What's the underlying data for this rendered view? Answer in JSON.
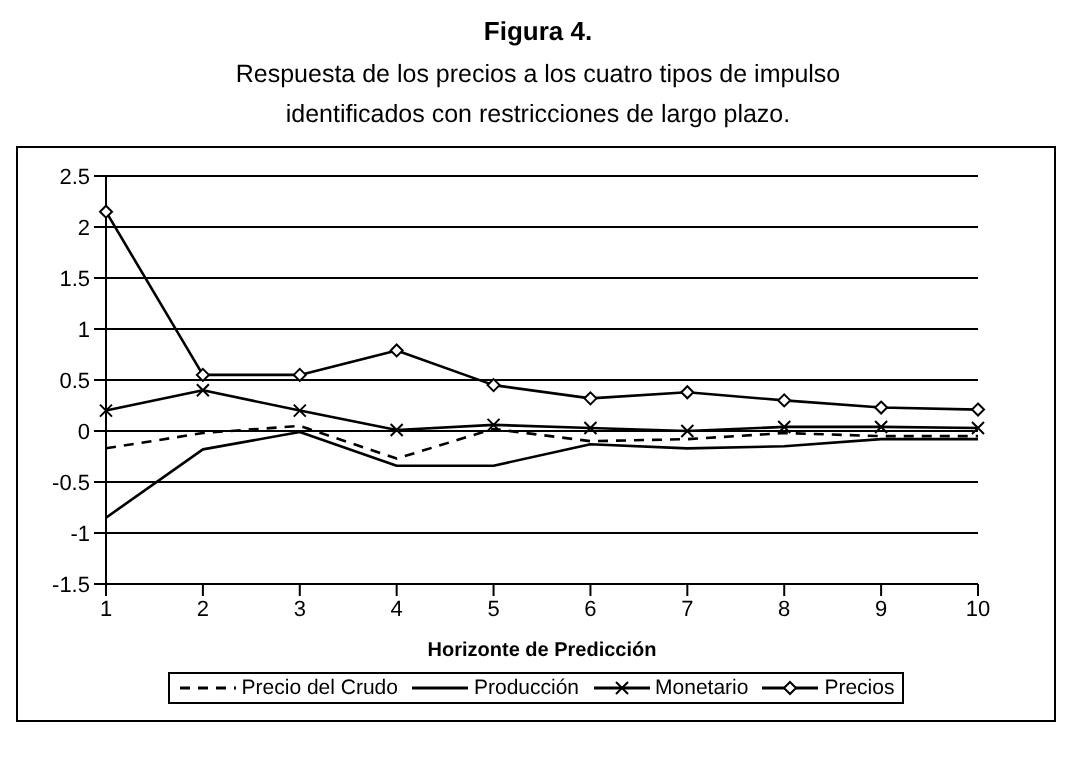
{
  "chart_data": {
    "type": "line",
    "title": "Figura 4.",
    "subtitle": "Respuesta de los precios a los cuatro tipos de impulso identificados con restricciones de largo plazo.",
    "xlabel": "Horizonte de Predicción",
    "categories": [
      "1",
      "2",
      "3",
      "4",
      "5",
      "6",
      "7",
      "8",
      "9",
      "10"
    ],
    "series": [
      {
        "name": "Precio del Crudo",
        "color": "#000000",
        "line_style": "dashed",
        "marker": "none",
        "values": [
          -0.17,
          -0.02,
          0.05,
          -0.27,
          0.02,
          -0.1,
          -0.08,
          -0.02,
          -0.05,
          -0.05
        ]
      },
      {
        "name": "Producción",
        "color": "#000000",
        "line_style": "solid",
        "marker": "none",
        "values": [
          -0.85,
          -0.18,
          -0.01,
          -0.34,
          -0.34,
          -0.13,
          -0.17,
          -0.15,
          -0.08,
          -0.08
        ]
      },
      {
        "name": "Monetario",
        "color": "#000000",
        "line_style": "solid",
        "marker": "cross",
        "values": [
          0.2,
          0.4,
          0.2,
          0.01,
          0.06,
          0.03,
          0.0,
          0.04,
          0.04,
          0.03
        ]
      },
      {
        "name": "Precios",
        "color": "#000000",
        "line_style": "solid",
        "marker": "diamond",
        "values": [
          2.15,
          0.55,
          0.55,
          0.79,
          0.45,
          0.32,
          0.38,
          0.3,
          0.23,
          0.21
        ]
      }
    ],
    "ylim": [
      -1.5,
      2.5
    ],
    "yticks": [
      -1.5,
      -1,
      -0.5,
      0,
      0.5,
      1,
      1.5,
      2,
      2.5
    ],
    "grid": "y",
    "legend": "bottom"
  }
}
